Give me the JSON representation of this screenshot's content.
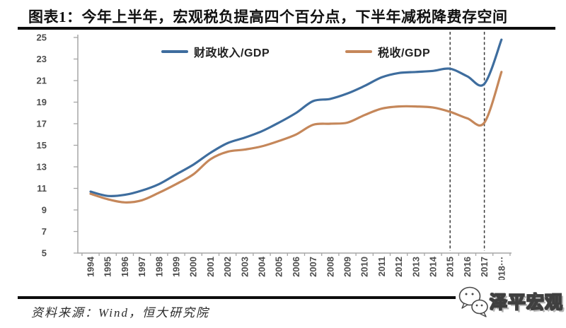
{
  "header": {
    "title": "图表1：今年上半年，宏观税负提高四个百分点，下半年减税降费存空间"
  },
  "footer": {
    "source_note": "资料来源：Wind，恒大研究院",
    "brand": "泽平宏观",
    "wechat_icon": "wechat-chat-bubbles"
  },
  "colors": {
    "fiscal_line": "#3e6d9e",
    "tax_line": "#c5875a",
    "axis": "#a6a6a6",
    "tick_label": "#4d4d4d",
    "dashed_line": "#3a3a3a",
    "rule": "#0d0d0d"
  },
  "chart_data": {
    "type": "line",
    "title": "图表1：今年上半年，宏观税负提高四个百分点，下半年减税降费存空间",
    "categories": [
      "1994",
      "1995",
      "1996",
      "1997",
      "1998",
      "1999",
      "2000",
      "2001",
      "2002",
      "2003",
      "2004",
      "2005",
      "2006",
      "2007",
      "2008",
      "2009",
      "2010",
      "2011",
      "2012",
      "2013",
      "2014",
      "2015",
      "2016",
      "2017",
      "2018"
    ],
    "last_tick_suffix": "⋯",
    "series": [
      {
        "name": "财政收入/GDP",
        "color": "#3e6d9e",
        "values": [
          10.7,
          10.3,
          10.4,
          10.8,
          11.4,
          12.3,
          13.2,
          14.3,
          15.2,
          15.7,
          16.3,
          17.1,
          18.0,
          19.1,
          19.3,
          19.8,
          20.5,
          21.3,
          21.7,
          21.8,
          21.9,
          22.1,
          21.4,
          20.7,
          24.8
        ]
      },
      {
        "name": "税收/GDP",
        "color": "#c5875a",
        "values": [
          10.5,
          10.0,
          9.7,
          9.9,
          10.6,
          11.4,
          12.3,
          13.7,
          14.4,
          14.6,
          14.9,
          15.4,
          16.0,
          16.9,
          17.0,
          17.1,
          17.8,
          18.4,
          18.6,
          18.6,
          18.5,
          18.1,
          17.5,
          17.1,
          21.8
        ]
      }
    ],
    "ylim": [
      5,
      25
    ],
    "ytick_step": 2,
    "yticks": [
      5,
      7,
      9,
      11,
      13,
      15,
      17,
      19,
      21,
      23,
      25
    ],
    "dashed_vlines": [
      "2015",
      "2017"
    ],
    "grid": false,
    "legend_position": "top",
    "xlabel": "",
    "ylabel": ""
  }
}
